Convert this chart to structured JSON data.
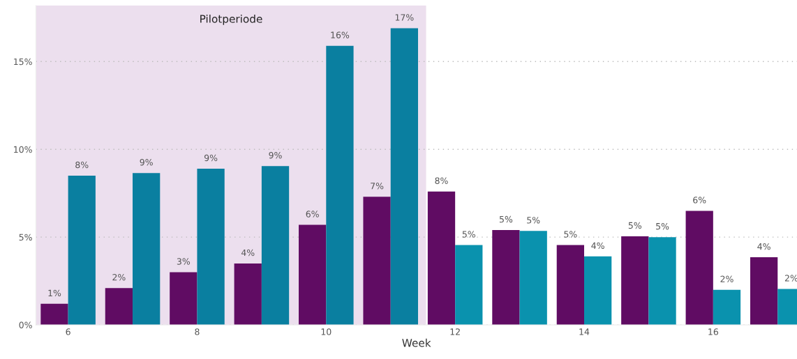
{
  "chart_data": {
    "type": "bar",
    "x": [
      6,
      7,
      8,
      9,
      10,
      11,
      12,
      13,
      14,
      15,
      16,
      17
    ],
    "xlabel": "Week",
    "series": [
      {
        "color": "#600c63",
        "values": [
          1.2,
          2.1,
          3.0,
          3.5,
          5.7,
          7.3,
          7.6,
          5.4,
          4.55,
          5.05,
          6.5,
          3.85
        ],
        "value_labels": [
          "1%",
          "2%",
          "3%",
          "4%",
          "6%",
          "7%",
          "8%",
          "5%",
          "5%",
          "5%",
          "6%",
          "4%"
        ]
      },
      {
        "colors": [
          "#0a7fa0",
          "#0a7fa0",
          "#0a7fa0",
          "#0a7fa0",
          "#0a7fa0",
          "#0a7fa0",
          "#0a92ae",
          "#0a92ae",
          "#0a92ae",
          "#0a92ae",
          "#0a92ae",
          "#0a92ae"
        ],
        "values": [
          8.5,
          8.65,
          8.9,
          9.05,
          15.9,
          16.9,
          4.55,
          5.35,
          3.9,
          5.0,
          2.0,
          2.05
        ],
        "value_labels": [
          "8%",
          "9%",
          "9%",
          "9%",
          "16%",
          "17%",
          "5%",
          "5%",
          "4%",
          "5%",
          "2%",
          "2%"
        ]
      }
    ],
    "xlim": [
      5.5,
      17.3
    ],
    "xticks": [
      6,
      8,
      10,
      12,
      14,
      16
    ],
    "ylim": [
      0,
      18.2
    ],
    "yticks": [
      {
        "value": 0,
        "label": "0%"
      },
      {
        "value": 5,
        "label": "5%"
      },
      {
        "value": 10,
        "label": "10%"
      },
      {
        "value": 15,
        "label": "15%"
      }
    ],
    "bands": [
      {
        "axis": "x",
        "from": 5.5,
        "to": 11.55,
        "label": "Pilotperiode",
        "color": "#ecdfee"
      }
    ],
    "grid": "y",
    "legend": false
  }
}
